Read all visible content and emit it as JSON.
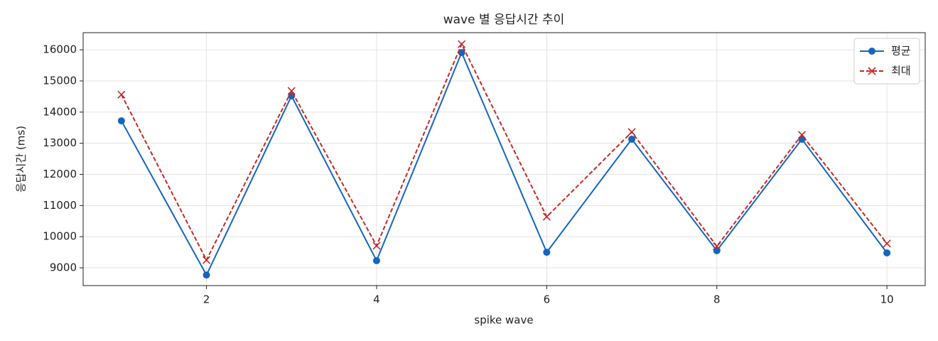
{
  "chart_data": {
    "type": "line",
    "title": "wave 별 응답시간 추이",
    "xlabel": "spike wave",
    "ylabel": "응답시간 (ms)",
    "x": [
      1,
      2,
      3,
      4,
      5,
      6,
      7,
      8,
      9,
      10
    ],
    "series": [
      {
        "name": "평균",
        "color": "#1565c0",
        "marker": "circle",
        "dash": "solid",
        "values": [
          13720,
          8770,
          14520,
          9230,
          15910,
          9500,
          13130,
          9550,
          13130,
          9480
        ]
      },
      {
        "name": "최대",
        "color": "#c62828",
        "marker": "x",
        "dash": "dashed",
        "values": [
          14560,
          9250,
          14680,
          9710,
          16180,
          10640,
          13360,
          9690,
          13270,
          9780
        ]
      }
    ],
    "xlim": [
      0.55,
      10.45
    ],
    "xticks": [
      2,
      4,
      6,
      8,
      10
    ],
    "ylim": [
      8430,
      16550
    ],
    "yticks": [
      9000,
      10000,
      11000,
      12000,
      13000,
      14000,
      15000,
      16000
    ],
    "grid": true,
    "legend": "upper right"
  }
}
